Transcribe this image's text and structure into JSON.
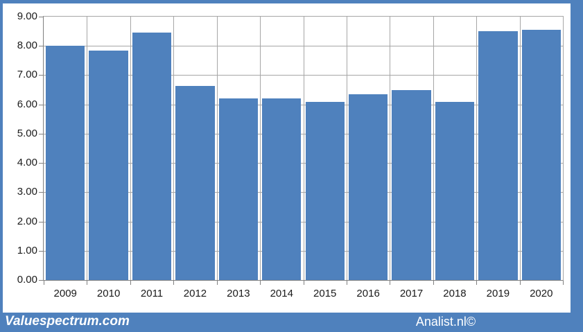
{
  "chart_data": {
    "type": "bar",
    "title": "",
    "xlabel": "",
    "ylabel": "",
    "categories": [
      "2009",
      "2010",
      "2011",
      "2012",
      "2013",
      "2014",
      "2015",
      "2016",
      "2017",
      "2018",
      "2019",
      "2020"
    ],
    "values": [
      8.0,
      7.84,
      8.45,
      6.63,
      6.21,
      6.21,
      6.08,
      6.35,
      6.5,
      6.08,
      8.51,
      8.55
    ],
    "ylim": [
      0,
      9
    ],
    "ytick_step": 1,
    "ytick_decimals": 2,
    "grid": "both",
    "legend": "none",
    "bar_color": "#4f81bd"
  },
  "footer": {
    "left_brand": "Valuespectrum.com",
    "right_brand": "Analist.nl©"
  },
  "colors": {
    "frame_blue": "#4f81bd",
    "plot_bg": "#ffffff",
    "gridline": "#a6a6a6",
    "axis_line": "#7f7f7f",
    "tick_label": "#1a1a1a",
    "brand_text": "#ffffff"
  }
}
